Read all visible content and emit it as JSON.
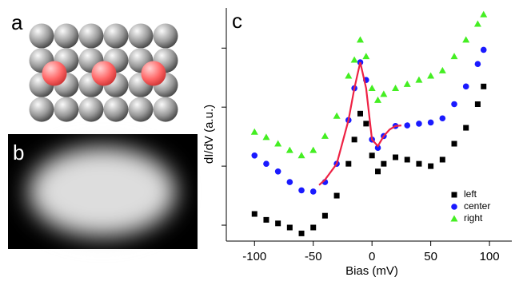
{
  "panels": {
    "a": {
      "label": "a"
    },
    "b": {
      "label": "b"
    }
  },
  "chart_data": {
    "type": "scatter",
    "panel_label": "c",
    "x_label": "Bias (mV)",
    "y_label": "dI/dV (a.u.)",
    "xlim": [
      -124,
      119
    ],
    "xticks": [
      -100,
      -50,
      0,
      50,
      100
    ],
    "ylim": [
      -0.27,
      3.68
    ],
    "yticks": [
      0,
      1,
      2,
      3
    ],
    "legend": "lower right",
    "x": [
      -100,
      -90,
      -80,
      -70,
      -60,
      -50,
      -40,
      -30,
      -20,
      -15,
      -10,
      -5,
      0,
      5,
      10,
      20,
      30,
      40,
      50,
      60,
      70,
      80,
      90,
      95
    ],
    "series": [
      {
        "name": "left",
        "color": "#000000",
        "marker": "square",
        "values": [
          0.19,
          0.09,
          0.03,
          -0.04,
          -0.14,
          -0.04,
          0.16,
          0.5,
          1.04,
          1.45,
          1.89,
          1.72,
          1.18,
          0.91,
          1.04,
          1.15,
          1.11,
          1.04,
          1.0,
          1.11,
          1.38,
          1.65,
          2.05,
          2.35
        ]
      },
      {
        "name": "center",
        "color": "#1a1aff",
        "marker": "circle",
        "values": [
          1.18,
          1.04,
          0.91,
          0.73,
          0.59,
          0.57,
          0.73,
          1.04,
          1.78,
          2.32,
          2.76,
          2.46,
          1.45,
          1.31,
          1.51,
          1.68,
          1.69,
          1.72,
          1.74,
          1.81,
          2.05,
          2.35,
          2.73,
          2.97
        ]
      },
      {
        "name": "right",
        "color": "#44ee22",
        "marker": "triangle",
        "values": [
          1.58,
          1.49,
          1.38,
          1.27,
          1.18,
          1.27,
          1.51,
          1.85,
          2.53,
          2.8,
          3.14,
          2.86,
          2.32,
          2.12,
          2.22,
          2.32,
          2.39,
          2.46,
          2.53,
          2.62,
          2.86,
          3.14,
          3.41,
          3.57
        ]
      }
    ],
    "fit": {
      "color": "#ee2244",
      "x": [
        -45,
        -40,
        -30,
        -20,
        -15,
        -10,
        -5,
        0,
        5,
        10,
        15,
        20,
        25
      ],
      "values": [
        0.68,
        0.77,
        1.04,
        1.78,
        2.32,
        2.76,
        2.32,
        1.45,
        1.34,
        1.51,
        1.62,
        1.68,
        1.69
      ]
    }
  }
}
